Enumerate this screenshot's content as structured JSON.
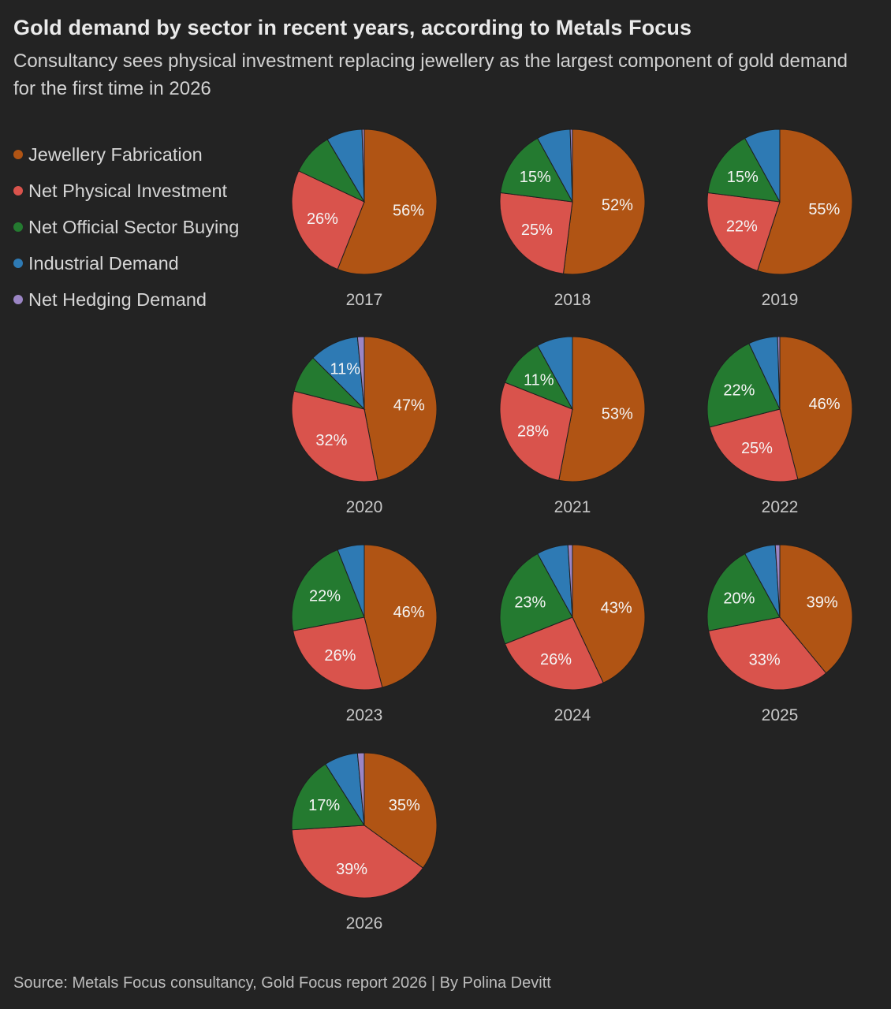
{
  "title": "Gold demand by sector in recent years, according to Metals Focus",
  "subtitle": "Consultancy sees physical investment replacing jewellery as the largest component of gold demand for the first time in 2026",
  "source": "Source: Metals Focus consultancy, Gold Focus report 2026 | By Polina Devitt",
  "legend": [
    {
      "label": "Jewellery Fabrication",
      "color": "#b05414"
    },
    {
      "label": "Net Physical Investment",
      "color": "#d9534c"
    },
    {
      "label": "Net Official Sector Buying",
      "color": "#247a30"
    },
    {
      "label": "Industrial Demand",
      "color": "#2e7ab4"
    },
    {
      "label": "Net Hedging Demand",
      "color": "#9b85c4"
    }
  ],
  "chart_data": {
    "type": "pie",
    "series_names": [
      "Jewellery Fabrication",
      "Net Physical Investment",
      "Net Official Sector Buying",
      "Industrial Demand",
      "Net Hedging Demand"
    ],
    "series_colors": [
      "#b05414",
      "#d9534c",
      "#247a30",
      "#2e7ab4",
      "#9b85c4"
    ],
    "label_min_percent": 10,
    "pies": [
      {
        "year": "2017",
        "values": [
          56,
          26,
          9.5,
          8,
          0.5
        ]
      },
      {
        "year": "2018",
        "values": [
          52,
          25,
          15,
          7.5,
          0.5
        ]
      },
      {
        "year": "2019",
        "values": [
          55,
          22,
          15,
          8,
          0
        ]
      },
      {
        "year": "2020",
        "values": [
          47,
          32,
          8.5,
          11,
          1.5
        ]
      },
      {
        "year": "2021",
        "values": [
          53,
          28,
          11,
          8,
          0
        ]
      },
      {
        "year": "2022",
        "values": [
          46,
          25,
          22,
          6.5,
          0.5
        ]
      },
      {
        "year": "2023",
        "values": [
          46,
          26,
          22,
          6,
          0
        ]
      },
      {
        "year": "2024",
        "values": [
          43,
          26,
          23,
          7,
          1
        ]
      },
      {
        "year": "2025",
        "values": [
          39,
          33,
          20,
          7,
          1
        ]
      },
      {
        "year": "2026",
        "values": [
          35,
          39,
          17,
          7.5,
          1.5
        ]
      }
    ]
  }
}
